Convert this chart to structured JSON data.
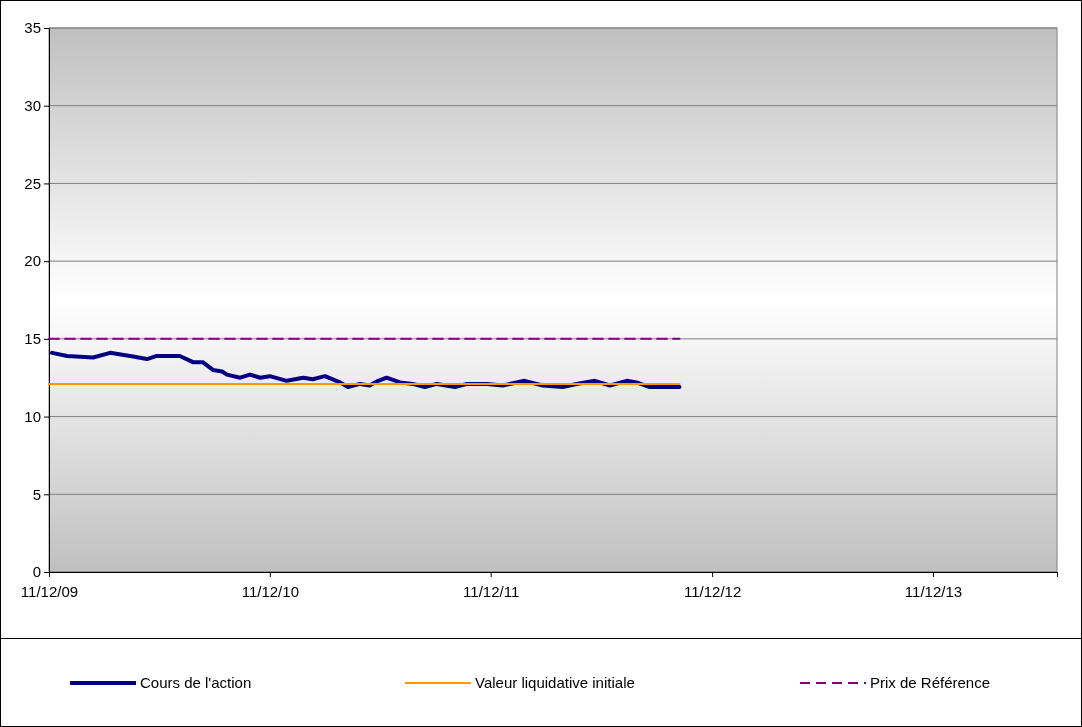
{
  "chart_data": {
    "type": "line",
    "xlim": [
      "2009-12-11",
      "2014-07-04"
    ],
    "xticks": [
      {
        "value": "2009-12-11",
        "label": "11/12/09"
      },
      {
        "value": "2010-12-11",
        "label": "11/12/10"
      },
      {
        "value": "2011-12-11",
        "label": "11/12/11"
      },
      {
        "value": "2012-12-11",
        "label": "11/12/12"
      },
      {
        "value": "2013-12-11",
        "label": "11/12/13"
      }
    ],
    "ylim": [
      0,
      35
    ],
    "yticks": [
      0,
      5,
      10,
      15,
      20,
      25,
      30,
      35
    ],
    "grid": "y",
    "legend": "bottom",
    "series": [
      {
        "name": "Cours de l'action",
        "color": "#000080",
        "line_style": "solid",
        "x": [
          "2009-12-16",
          "2010-01-10",
          "2010-02-22",
          "2010-03-22",
          "2010-04-24",
          "2010-05-22",
          "2010-06-07",
          "2010-07-15",
          "2010-08-06",
          "2010-08-22",
          "2010-09-08",
          "2010-09-23",
          "2010-10-01",
          "2010-10-23",
          "2010-11-08",
          "2010-11-25",
          "2010-12-11",
          "2011-01-08",
          "2011-02-04",
          "2011-02-20",
          "2011-03-12",
          "2011-04-06",
          "2011-04-19",
          "2011-05-09",
          "2011-05-25",
          "2011-06-08",
          "2011-06-22",
          "2011-07-14",
          "2011-08-04",
          "2011-08-24",
          "2011-09-13",
          "2011-10-13",
          "2011-11-02",
          "2011-12-05",
          "2011-12-31",
          "2012-02-05",
          "2012-03-06",
          "2012-04-08",
          "2012-05-01",
          "2012-05-31",
          "2012-06-25",
          "2012-07-23",
          "2012-08-08",
          "2012-08-30",
          "2012-10-18"
        ],
        "values": [
          14.1,
          13.9,
          13.8,
          14.1,
          13.9,
          13.7,
          13.9,
          13.9,
          13.5,
          13.5,
          13,
          12.9,
          12.7,
          12.5,
          12.7,
          12.5,
          12.6,
          12.3,
          12.5,
          12.4,
          12.6,
          12.2,
          11.9,
          12.1,
          12,
          12.3,
          12.5,
          12.2,
          12.1,
          11.9,
          12.1,
          11.9,
          12.1,
          12.1,
          12,
          12.3,
          12,
          11.9,
          12.1,
          12.3,
          12,
          12.3,
          12.2,
          11.9,
          11.9
        ]
      },
      {
        "name": "Valeur liquidative initiale",
        "color": "#ff9900",
        "line_style": "solid",
        "x": [
          "2009-12-11",
          "2012-10-18"
        ],
        "values": [
          12.1,
          12.1
        ]
      },
      {
        "name": "Prix de Référence",
        "color": "#800080",
        "line_style": "dashed",
        "x": [
          "2009-12-11",
          "2012-10-18"
        ],
        "values": [
          15,
          15
        ]
      }
    ]
  }
}
